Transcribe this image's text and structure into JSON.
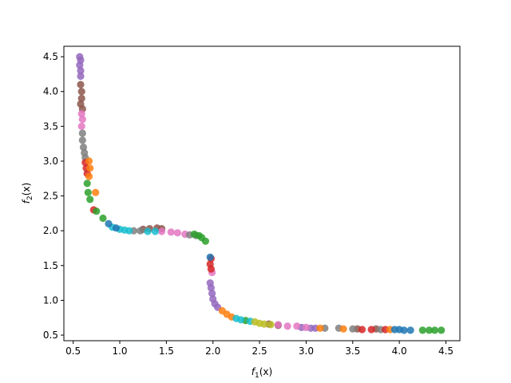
{
  "chart_data": {
    "type": "scatter",
    "xlabel_main": "f",
    "xlabel_sub": "1",
    "xlabel_arg": "(x)",
    "ylabel_main": "f",
    "ylabel_sub": "2",
    "ylabel_arg": "(x)",
    "xlim": [
      0.4,
      4.65
    ],
    "ylim": [
      0.42,
      4.65
    ],
    "xticks": [
      0.5,
      1.0,
      1.5,
      2.0,
      2.5,
      3.0,
      3.5,
      4.0,
      4.5
    ],
    "xtick_labels": [
      "0.5",
      "1.0",
      "1.5",
      "2.0",
      "2.5",
      "3.0",
      "3.5",
      "4.0",
      "4.5"
    ],
    "yticks": [
      0.5,
      1.0,
      1.5,
      2.0,
      2.5,
      3.0,
      3.5,
      4.0,
      4.5
    ],
    "ytick_labels": [
      "0.5",
      "1.0",
      "1.5",
      "2.0",
      "2.5",
      "3.0",
      "3.5",
      "4.0",
      "4.5"
    ],
    "grid": false,
    "legend": "none",
    "series": [
      {
        "color": "#9467bd",
        "points": [
          [
            0.57,
            4.5
          ],
          [
            0.58,
            4.45
          ],
          [
            0.57,
            4.38
          ],
          [
            0.58,
            4.3
          ],
          [
            0.58,
            4.22
          ],
          [
            1.97,
            1.25
          ],
          [
            1.98,
            1.18
          ],
          [
            1.99,
            1.1
          ],
          [
            2.0,
            1.02
          ],
          [
            2.02,
            0.95
          ],
          [
            2.05,
            0.9
          ],
          [
            2.95,
            0.61
          ],
          [
            3.05,
            0.6
          ],
          [
            3.1,
            0.6
          ]
        ]
      },
      {
        "color": "#8c564b",
        "points": [
          [
            0.58,
            4.1
          ],
          [
            0.59,
            4.0
          ],
          [
            0.59,
            3.9
          ],
          [
            0.58,
            3.82
          ],
          [
            0.6,
            3.75
          ],
          [
            1.25,
            2.02
          ],
          [
            1.32,
            2.03
          ],
          [
            1.4,
            2.04
          ],
          [
            1.45,
            2.03
          ],
          [
            2.6,
            0.66
          ],
          [
            2.7,
            0.64
          ],
          [
            3.55,
            0.59
          ],
          [
            3.75,
            0.59
          ]
        ]
      },
      {
        "color": "#e377c2",
        "points": [
          [
            0.59,
            3.68
          ],
          [
            0.6,
            3.6
          ],
          [
            0.59,
            3.5
          ],
          [
            1.45,
            1.99
          ],
          [
            1.55,
            1.98
          ],
          [
            1.62,
            1.97
          ],
          [
            1.7,
            1.95
          ],
          [
            1.99,
            1.4
          ],
          [
            2.7,
            0.65
          ],
          [
            2.8,
            0.63
          ],
          [
            2.9,
            0.63
          ],
          [
            3.0,
            0.61
          ]
        ]
      },
      {
        "color": "#7f7f7f",
        "points": [
          [
            0.6,
            3.4
          ],
          [
            0.6,
            3.3
          ],
          [
            0.61,
            3.2
          ],
          [
            0.62,
            3.12
          ],
          [
            0.63,
            3.05
          ],
          [
            1.15,
            2.0
          ],
          [
            1.22,
            2.0
          ],
          [
            1.75,
            1.94
          ],
          [
            1.82,
            1.93
          ],
          [
            3.2,
            0.6
          ],
          [
            3.35,
            0.6
          ],
          [
            3.5,
            0.59
          ],
          [
            3.8,
            0.58
          ]
        ]
      },
      {
        "color": "#d62728",
        "points": [
          [
            0.63,
            2.98
          ],
          [
            0.64,
            2.9
          ],
          [
            0.65,
            2.82
          ],
          [
            0.72,
            2.3
          ],
          [
            1.98,
            1.6
          ],
          [
            1.97,
            1.52
          ],
          [
            1.98,
            1.45
          ],
          [
            3.6,
            0.58
          ],
          [
            3.7,
            0.58
          ],
          [
            3.85,
            0.58
          ]
        ]
      },
      {
        "color": "#ff7f0e",
        "points": [
          [
            0.67,
            3.0
          ],
          [
            0.68,
            2.9
          ],
          [
            0.67,
            2.78
          ],
          [
            0.74,
            2.55
          ],
          [
            2.1,
            0.85
          ],
          [
            2.15,
            0.8
          ],
          [
            2.2,
            0.76
          ],
          [
            3.15,
            0.6
          ],
          [
            3.4,
            0.59
          ],
          [
            3.9,
            0.58
          ]
        ]
      },
      {
        "color": "#2ca02c",
        "points": [
          [
            0.65,
            2.68
          ],
          [
            0.66,
            2.55
          ],
          [
            0.68,
            2.45
          ],
          [
            0.75,
            2.28
          ],
          [
            0.82,
            2.18
          ],
          [
            1.8,
            1.95
          ],
          [
            1.85,
            1.93
          ],
          [
            1.88,
            1.9
          ],
          [
            1.92,
            1.85
          ],
          [
            2.35,
            0.71
          ],
          [
            4.25,
            0.57
          ],
          [
            4.32,
            0.57
          ],
          [
            4.38,
            0.57
          ],
          [
            4.45,
            0.57
          ]
        ]
      },
      {
        "color": "#17becf",
        "points": [
          [
            0.92,
            2.05
          ],
          [
            1.0,
            2.02
          ],
          [
            1.05,
            2.01
          ],
          [
            1.1,
            2.0
          ],
          [
            1.3,
            1.99
          ],
          [
            1.38,
            1.99
          ],
          [
            2.25,
            0.74
          ],
          [
            2.3,
            0.72
          ],
          [
            2.4,
            0.7
          ]
        ]
      },
      {
        "color": "#bcbd22",
        "points": [
          [
            2.45,
            0.69
          ],
          [
            2.5,
            0.67
          ],
          [
            2.55,
            0.66
          ],
          [
            2.62,
            0.65
          ]
        ]
      },
      {
        "color": "#1f77b4",
        "points": [
          [
            0.88,
            2.1
          ],
          [
            0.96,
            2.04
          ],
          [
            1.97,
            1.62
          ],
          [
            3.95,
            0.58
          ],
          [
            4.0,
            0.58
          ],
          [
            4.05,
            0.57
          ],
          [
            4.12,
            0.57
          ]
        ]
      }
    ]
  }
}
